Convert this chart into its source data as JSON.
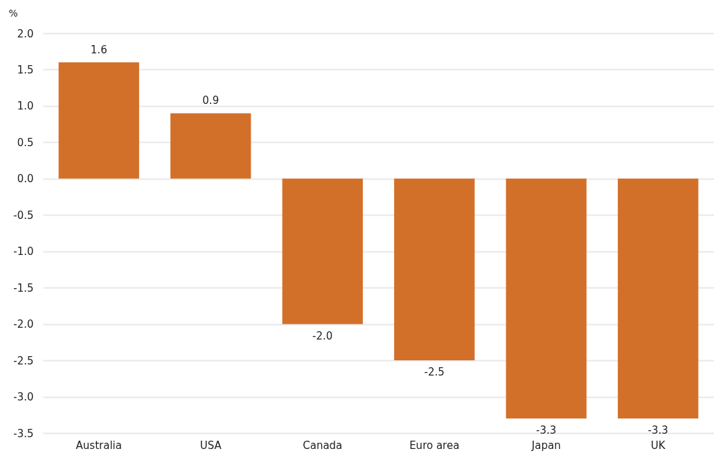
{
  "chart_data": {
    "type": "bar",
    "ylabel": "%",
    "categories": [
      "Australia",
      "USA",
      "Canada",
      "Euro area",
      "Japan",
      "UK"
    ],
    "values": [
      1.6,
      0.9,
      -2.0,
      -2.5,
      -3.3,
      -3.3
    ],
    "color": "#d2702a",
    "ylim": [
      -3.5,
      2.0
    ],
    "yticks": [
      {
        "value": -3.5,
        "label": "-3.5"
      },
      {
        "value": -3,
        "label": "-3.0"
      },
      {
        "value": -2.5,
        "label": "-2.5"
      },
      {
        "value": -2,
        "label": "-2.0"
      },
      {
        "value": -1.5,
        "label": "-1.5"
      },
      {
        "value": -1,
        "label": "-1.0"
      },
      {
        "value": -0.5,
        "label": "-0.5"
      },
      {
        "value": 0,
        "label": "0.0"
      },
      {
        "value": 0.5,
        "label": "0.5"
      },
      {
        "value": 1,
        "label": "1.0"
      },
      {
        "value": 1.5,
        "label": "1.5"
      },
      {
        "value": 2,
        "label": "2.0"
      }
    ],
    "grid": "y",
    "data_labels": true,
    "value_labels": [
      "1.6",
      "0.9",
      "-2.0",
      "-2.5",
      "-3.3",
      "-3.3"
    ]
  }
}
